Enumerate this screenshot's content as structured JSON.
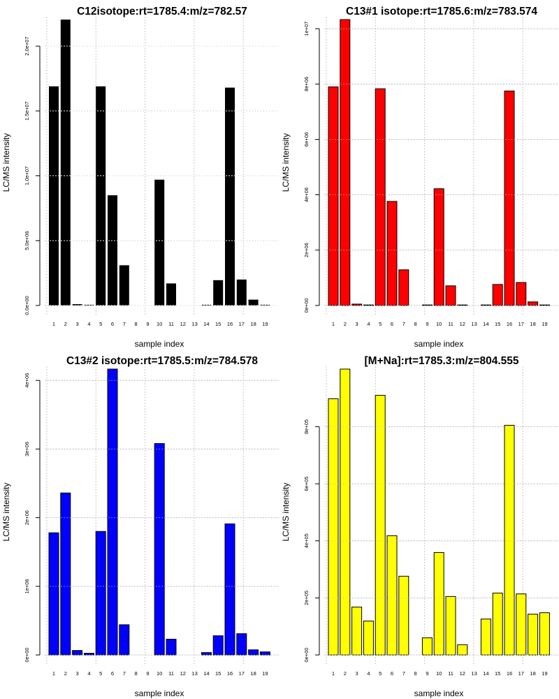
{
  "chart_data": [
    {
      "type": "bar",
      "title": "C12isotope:rt=1785.4:m/z=782.57",
      "xlabel": "sample index",
      "ylabel": "LC/MS intensity",
      "categories": [
        "1",
        "2",
        "3",
        "4",
        "5",
        "6",
        "7",
        "8",
        "9",
        "10",
        "11",
        "12",
        "13",
        "14",
        "15",
        "16",
        "17",
        "18",
        "19"
      ],
      "values": [
        16900000,
        22050000,
        100000,
        50000,
        16900000,
        8500000,
        3100000,
        0,
        0,
        9700000,
        1700000,
        0,
        0,
        50000,
        1950000,
        16800000,
        2000000,
        450000,
        50000
      ],
      "ylim": [
        0,
        22050000
      ],
      "yticks": [
        0,
        5000000,
        10000000,
        15000000,
        20000000
      ],
      "ytick_labels": [
        "0.0e+00",
        "5.0e+06",
        "1.0e+07",
        "1.5e+07",
        "2.0e+07"
      ],
      "color": "#000000",
      "grid": true
    },
    {
      "type": "bar",
      "title": "C13#1 isotope:rt=1785.6:m/z=783.574",
      "xlabel": "sample index",
      "ylabel": "LC/MS intensity",
      "categories": [
        "1",
        "2",
        "3",
        "4",
        "5",
        "6",
        "7",
        "8",
        "9",
        "10",
        "11",
        "12",
        "13",
        "14",
        "15",
        "16",
        "17",
        "18",
        "19"
      ],
      "values": [
        7900000,
        10330000,
        50000,
        20000,
        7830000,
        3760000,
        1290000,
        0,
        20000,
        4220000,
        710000,
        20000,
        0,
        20000,
        760000,
        7750000,
        830000,
        130000,
        20000
      ],
      "ylim": [
        0,
        10330000
      ],
      "yticks": [
        0,
        2000000,
        4000000,
        6000000,
        8000000,
        10000000
      ],
      "ytick_labels": [
        "0e+00",
        "2e+06",
        "4e+06",
        "6e+06",
        "8e+06",
        "1e+07"
      ],
      "color": "#ff0000",
      "grid": true
    },
    {
      "type": "bar",
      "title": "C13#2 isotope:rt=1785.5:m/z=784.578",
      "xlabel": "sample index",
      "ylabel": "LC/MS intensity",
      "categories": [
        "1",
        "2",
        "3",
        "4",
        "5",
        "6",
        "7",
        "8",
        "9",
        "10",
        "11",
        "12",
        "13",
        "14",
        "15",
        "16",
        "17",
        "18",
        "19"
      ],
      "values": [
        1780000,
        2360000,
        65000,
        25000,
        1800000,
        4165000,
        440000,
        0,
        0,
        3080000,
        230000,
        0,
        0,
        35000,
        280000,
        1910000,
        310000,
        75000,
        45000
      ],
      "ylim": [
        0,
        4165000
      ],
      "yticks": [
        0,
        1000000,
        2000000,
        3000000,
        4000000
      ],
      "ytick_labels": [
        "0e+00",
        "1e+06",
        "2e+06",
        "3e+06",
        "4e+06"
      ],
      "color": "#0000ff",
      "grid": true
    },
    {
      "type": "bar",
      "title": "[M+Na]:rt=1785.3:m/z=804.555",
      "xlabel": "sample index",
      "ylabel": "LC/MS intensity",
      "categories": [
        "1",
        "2",
        "3",
        "4",
        "5",
        "6",
        "7",
        "8",
        "9",
        "10",
        "11",
        "12",
        "13",
        "14",
        "15",
        "16",
        "17",
        "18",
        "19"
      ],
      "values": [
        898000,
        1002000,
        168000,
        119000,
        910000,
        418000,
        276000,
        0,
        60000,
        359000,
        205000,
        36000,
        0,
        126000,
        217000,
        805000,
        214000,
        143000,
        148000
      ],
      "ylim": [
        0,
        1002000
      ],
      "yticks": [
        0,
        200000,
        400000,
        600000,
        800000
      ],
      "ytick_labels": [
        "0e+00",
        "2e+05",
        "4e+05",
        "6e+05",
        "8e+05"
      ],
      "color": "#ffff00",
      "grid": true
    }
  ]
}
